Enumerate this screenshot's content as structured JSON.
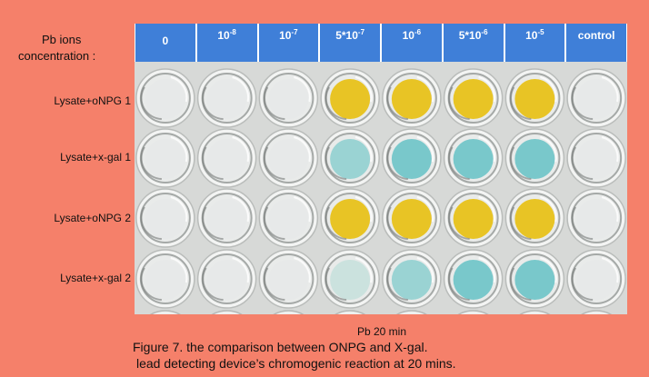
{
  "axis_label": {
    "line1": "Pb ions",
    "line2": "concentration :"
  },
  "columns": [
    {
      "base": "0",
      "exp": ""
    },
    {
      "base": "10",
      "exp": "-8"
    },
    {
      "base": "10",
      "exp": "-7"
    },
    {
      "base": "5*10",
      "exp": "-7"
    },
    {
      "base": "10",
      "exp": "-6"
    },
    {
      "base": "5*10",
      "exp": "-6"
    },
    {
      "base": "10",
      "exp": "-5"
    },
    {
      "base": "control",
      "exp": ""
    }
  ],
  "rows": [
    {
      "label": "Lysate+oNPG  1",
      "wells": [
        "clear",
        "clear",
        "clear",
        "yellow",
        "yellow",
        "yellow",
        "yellow",
        "clear"
      ]
    },
    {
      "label": "Lysate+x-gal  1",
      "wells": [
        "clear",
        "clear",
        "clear",
        "blue-light",
        "blue",
        "blue",
        "blue",
        "clear"
      ]
    },
    {
      "label": "Lysate+oNPG 2",
      "wells": [
        "clear",
        "clear",
        "clear",
        "yellow",
        "yellow",
        "yellow",
        "yellow",
        "clear"
      ]
    },
    {
      "label": "Lysate+x-gal  2",
      "wells": [
        "clear",
        "clear",
        "clear",
        "blue-faint",
        "blue-light",
        "blue",
        "blue",
        "clear"
      ]
    }
  ],
  "well_colors": {
    "clear": "#e6e8e7",
    "yellow": "#e8c21a",
    "blue": "#73c6c9",
    "blue-light": "#96d2d2",
    "blue-faint": "#c9e1dd"
  },
  "pb_label": "Pb 20 min",
  "caption": {
    "line1": "Figure 7. the comparison between ONPG and X-gal.",
    "line2": "lead detecting device’s chromogenic reaction at 20 mins."
  }
}
